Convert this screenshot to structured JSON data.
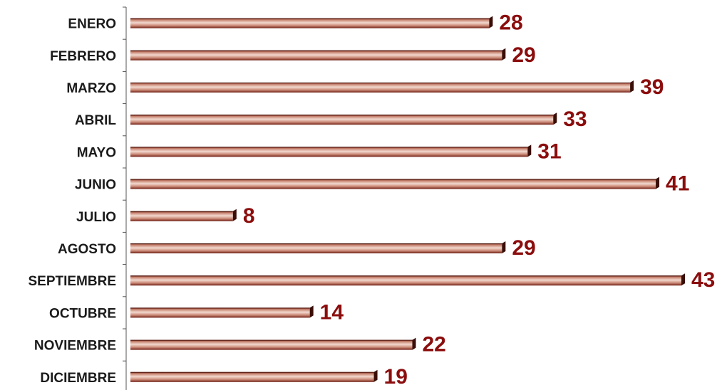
{
  "chart_data": {
    "type": "bar",
    "orientation": "horizontal",
    "categories": [
      "ENERO",
      "FEBRERO",
      "MARZO",
      "ABRIL",
      "MAYO",
      "JUNIO",
      "JULIO",
      "AGOSTO",
      "SEPTIEMBRE",
      "OCTUBRE",
      "NOVIEMBRE",
      "DICIEMBRE"
    ],
    "values": [
      28,
      29,
      39,
      33,
      31,
      41,
      8,
      29,
      43,
      14,
      22,
      19
    ],
    "xlim": [
      0,
      43
    ],
    "grid": false,
    "legend": "none",
    "colors": {
      "bar_light": "#f3d9cf",
      "bar_mid": "#c98774",
      "bar_dark": "#7a2416",
      "bar_end": "#3a0e08",
      "value_text": "#8b0d0d",
      "category_text": "#1a1a1a",
      "axis": "#555555"
    }
  }
}
